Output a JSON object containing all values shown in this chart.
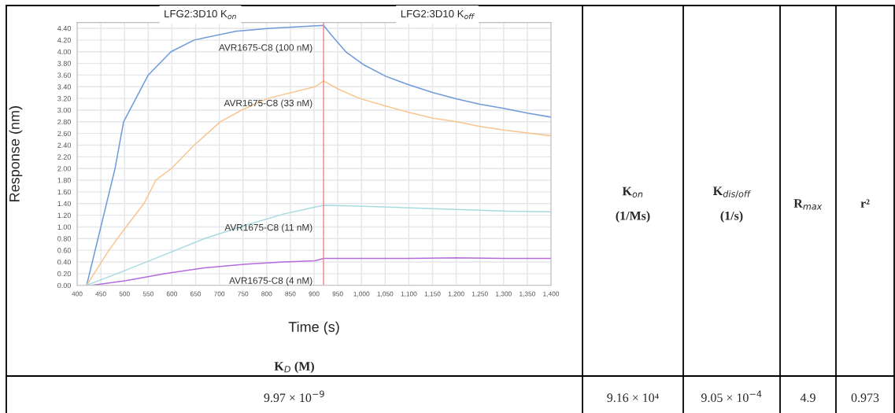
{
  "chart_data": [
    {
      "type": "line",
      "xlabel": "Time (s)",
      "ylabel": "Response (nm)",
      "annotations": [
        "LFG2:3D10 K$_{on}$",
        "LFG2:3D10 K$_{off}$"
      ],
      "series": [
        {
          "name": "AVR1675-C8 (100 nM)",
          "color": "#6f9bd8",
          "x": [
            420,
            480,
            498,
            550,
            598,
            647,
            735,
            807,
            920,
            935,
            968,
            1006,
            1051,
            1101,
            1151,
            1201,
            1250,
            1300,
            1350,
            1400
          ],
          "values": [
            0,
            2.0,
            2.8,
            3.6,
            4.0,
            4.2,
            4.35,
            4.4,
            4.45,
            4.3,
            3.99,
            3.77,
            3.58,
            3.43,
            3.3,
            3.19,
            3.1,
            3.03,
            2.95,
            2.88
          ]
        },
        {
          "name": "AVR1675-C8 (33 nM)",
          "color": "#f9c58e",
          "x": [
            420,
            467,
            503,
            541,
            566,
            599,
            647,
            702,
            747,
            802,
            902,
            920,
            951,
            996,
            1051,
            1101,
            1151,
            1201,
            1250,
            1300,
            1350,
            1400
          ],
          "values": [
            0,
            0.6,
            1.0,
            1.4,
            1.8,
            2.0,
            2.4,
            2.8,
            3.0,
            3.2,
            3.4,
            3.5,
            3.36,
            3.2,
            3.07,
            2.96,
            2.86,
            2.8,
            2.72,
            2.66,
            2.61,
            2.56
          ]
        },
        {
          "name": "AVR1675-C8 (11 nM)",
          "color": "#a8dbe0",
          "x": [
            420,
            503,
            586,
            669,
            752,
            835,
            902,
            920,
            979,
            1090,
            1201,
            1311,
            1400
          ],
          "values": [
            0,
            0.26,
            0.53,
            0.8,
            1.02,
            1.22,
            1.34,
            1.37,
            1.36,
            1.33,
            1.3,
            1.27,
            1.26
          ]
        },
        {
          "name": "AVR1675-C8 (4 nM)",
          "color": "#b46be0",
          "x": [
            431,
            503,
            586,
            669,
            752,
            835,
            902,
            920,
            1000,
            1100,
            1200,
            1300,
            1400
          ],
          "values": [
            0,
            0.08,
            0.2,
            0.3,
            0.36,
            0.4,
            0.42,
            0.46,
            0.46,
            0.46,
            0.47,
            0.46,
            0.46
          ]
        }
      ],
      "ref_lines": [
        {
          "axis": "x",
          "value": 920,
          "color": "#f08080"
        }
      ],
      "xlim": [
        400,
        1400
      ],
      "xticks": [
        400,
        450,
        500,
        550,
        600,
        650,
        700,
        750,
        800,
        850,
        900,
        950,
        {
          "value": 1000,
          "label": "1,000"
        },
        {
          "value": 1050,
          "label": "1,050"
        },
        {
          "value": 1100,
          "label": "1,100"
        },
        {
          "value": 1150,
          "label": "1,150"
        },
        {
          "value": 1200,
          "label": "1,200"
        },
        {
          "value": 1250,
          "label": "1,250"
        },
        {
          "value": 1300,
          "label": "1,300"
        },
        {
          "value": 1350,
          "label": "1,350"
        },
        {
          "value": 1400,
          "label": "1,400"
        }
      ],
      "ylim": [
        0,
        4.5
      ],
      "yticks": [
        {
          "value": 0,
          "label": "0.00"
        },
        {
          "value": 0.2,
          "label": "0.20"
        },
        {
          "value": 0.4,
          "label": "0.40"
        },
        {
          "value": 0.6,
          "label": "0.60"
        },
        {
          "value": 0.8,
          "label": "0.80"
        },
        {
          "value": 1,
          "label": "1.00"
        },
        {
          "value": 1.2,
          "label": "1.20"
        },
        {
          "value": 1.4,
          "label": "1.40"
        },
        {
          "value": 1.6,
          "label": "1.60"
        },
        {
          "value": 1.8,
          "label": "1.80"
        },
        {
          "value": 2,
          "label": "2.00"
        },
        {
          "value": 2.2,
          "label": "2.20"
        },
        {
          "value": 2.4,
          "label": "2.40"
        },
        {
          "value": 2.6,
          "label": "2.60"
        },
        {
          "value": 2.8,
          "label": "2.80"
        },
        {
          "value": 3,
          "label": "3.00"
        },
        {
          "value": 3.2,
          "label": "3.20"
        },
        {
          "value": 3.4,
          "label": "3.40"
        },
        {
          "value": 3.6,
          "label": "3.60"
        },
        {
          "value": 3.8,
          "label": "3.80"
        },
        {
          "value": 4,
          "label": "4.00"
        },
        {
          "value": 4.2,
          "label": "4.20"
        },
        {
          "value": 4.4,
          "label": "4.40"
        }
      ],
      "grid": true
    },
    {
      "type": "other",
      "annotations": [
        "K$_{D}$ (M)",
        "K$_{on}$\n\n(1/Ms)",
        "K$_{dis/off}$\n\n(1/s)",
        "R$_{max}$",
        "r²",
        "9.97 × 10$^{−9}$",
        "9.16 × 10⁴",
        "9.05 × 10$^{−4}$",
        "4.9",
        "0.973"
      ]
    }
  ]
}
